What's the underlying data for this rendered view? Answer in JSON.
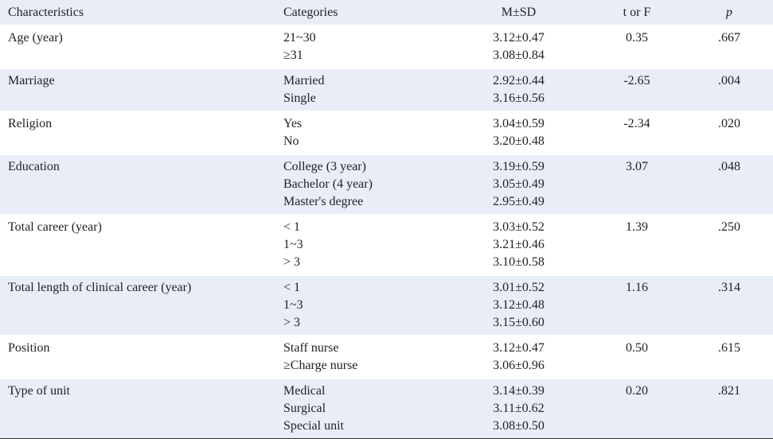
{
  "header": {
    "characteristics": "Characteristics",
    "categories": "Categories",
    "msd": "M±SD",
    "torf": "t or F",
    "p": "p"
  },
  "rows": [
    {
      "characteristic": "Age (year)",
      "categories": [
        "21~30",
        "≥31"
      ],
      "msd": [
        "3.12±0.47",
        "3.08±0.84"
      ],
      "t": "0.35",
      "p": ".667"
    },
    {
      "characteristic": "Marriage",
      "categories": [
        "Married",
        "Single"
      ],
      "msd": [
        "2.92±0.44",
        "3.16±0.56"
      ],
      "t": "-2.65",
      "p": ".004"
    },
    {
      "characteristic": "Religion",
      "categories": [
        "Yes",
        "No"
      ],
      "msd": [
        "3.04±0.59",
        "3.20±0.48"
      ],
      "t": "-2.34",
      "p": ".020"
    },
    {
      "characteristic": "Education",
      "categories": [
        "College (3 year)",
        "Bachelor (4 year)",
        "Master's degree"
      ],
      "msd": [
        "3.19±0.59",
        "3.05±0.49",
        "2.95±0.49"
      ],
      "t": "3.07",
      "p": ".048"
    },
    {
      "characteristic": "Total career (year)",
      "categories": [
        "< 1",
        "1~3",
        "> 3"
      ],
      "msd": [
        "3.03±0.52",
        "3.21±0.46",
        "3.10±0.58"
      ],
      "t": "1.39",
      "p": ".250"
    },
    {
      "characteristic": "Total length of clinical career (year)",
      "categories": [
        "< 1",
        "1~3",
        "> 3"
      ],
      "msd": [
        "3.01±0.52",
        "3.12±0.48",
        "3.15±0.60"
      ],
      "t": "1.16",
      "p": ".314"
    },
    {
      "characteristic": "Position",
      "categories": [
        "Staff nurse",
        "≥Charge nurse"
      ],
      "msd": [
        "3.12±0.47",
        "3.06±0.96"
      ],
      "t": "0.50",
      "p": ".615"
    },
    {
      "characteristic": "Type of unit",
      "categories": [
        "Medical",
        "Surgical",
        "Special unit"
      ],
      "msd": [
        "3.14±0.39",
        "3.11±0.62",
        "3.08±0.50"
      ],
      "t": "0.20",
      "p": ".821"
    }
  ]
}
